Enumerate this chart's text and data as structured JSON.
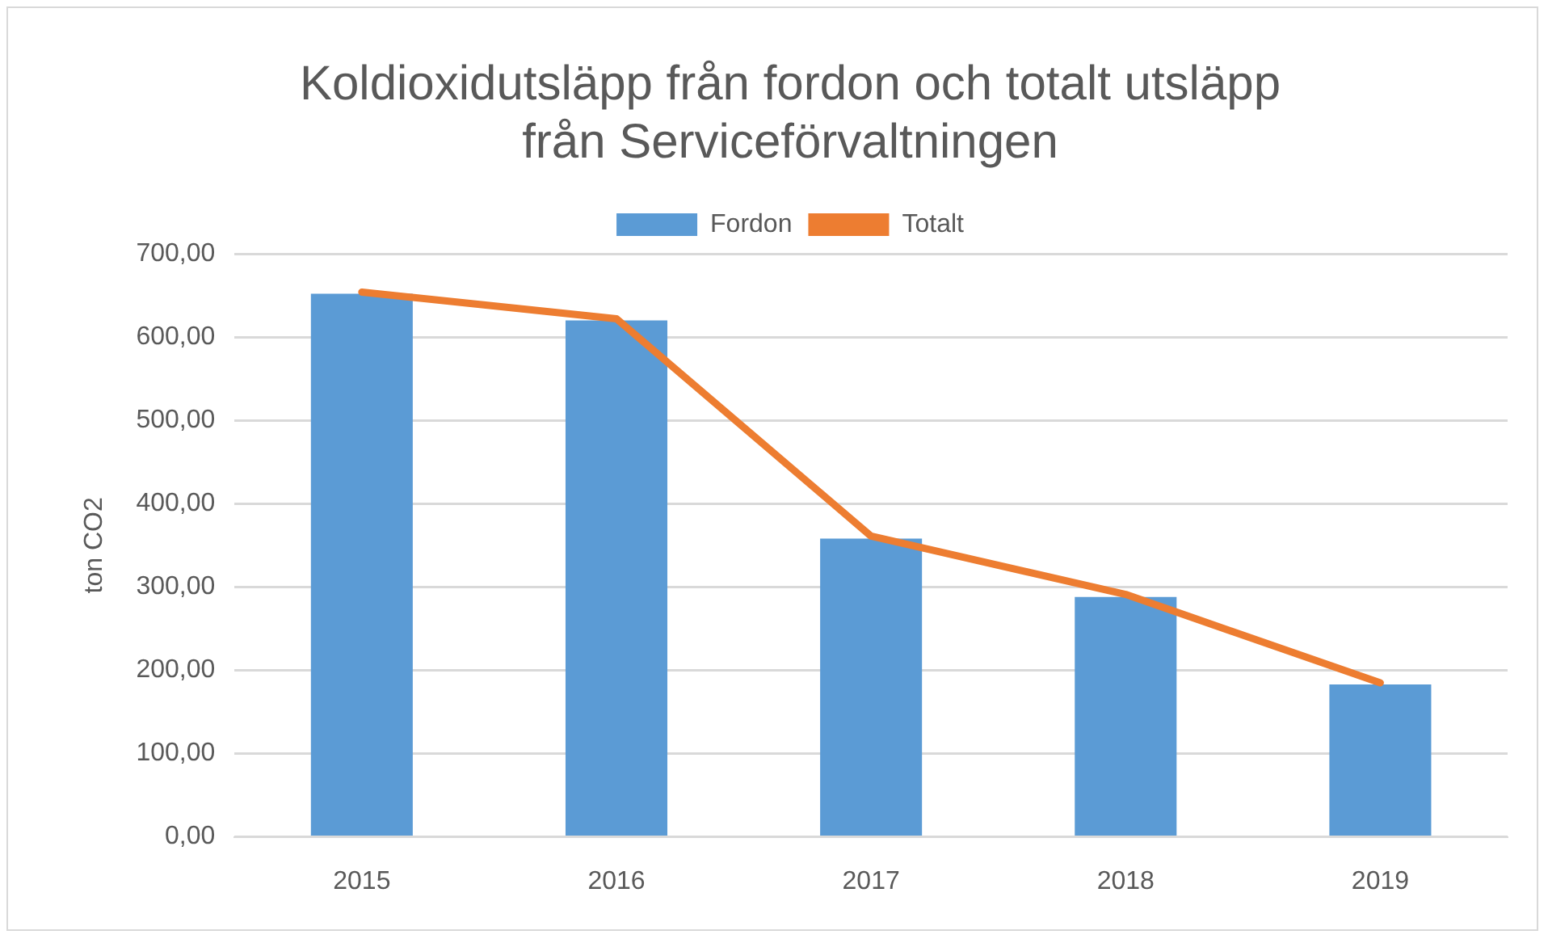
{
  "chart_data": {
    "type": "bar",
    "title": "Koldioxidutsläpp från fordon och totalt utsläpp\nfrån Serviceförvaltningen",
    "ylabel": "ton CO2",
    "categories": [
      "2015",
      "2016",
      "2017",
      "2018",
      "2019"
    ],
    "series": [
      {
        "name": "Fordon",
        "color": "#5b9bd5",
        "values": [
          652,
          620,
          358,
          288,
          183
        ]
      },
      {
        "name": "Totalt",
        "type": "line",
        "color": "#ed7d31",
        "values": [
          654,
          622,
          361,
          291,
          185
        ]
      }
    ],
    "ylim": [
      0,
      700
    ],
    "yticks": [
      {
        "value": 0,
        "label": "0,00"
      },
      {
        "value": 100,
        "label": "100,00"
      },
      {
        "value": 200,
        "label": "200,00"
      },
      {
        "value": 300,
        "label": "300,00"
      },
      {
        "value": 400,
        "label": "400,00"
      },
      {
        "value": 500,
        "label": "500,00"
      },
      {
        "value": 600,
        "label": "600,00"
      },
      {
        "value": 700,
        "label": "700,00"
      }
    ],
    "grid": "y",
    "legend": "top",
    "marker": "none"
  }
}
